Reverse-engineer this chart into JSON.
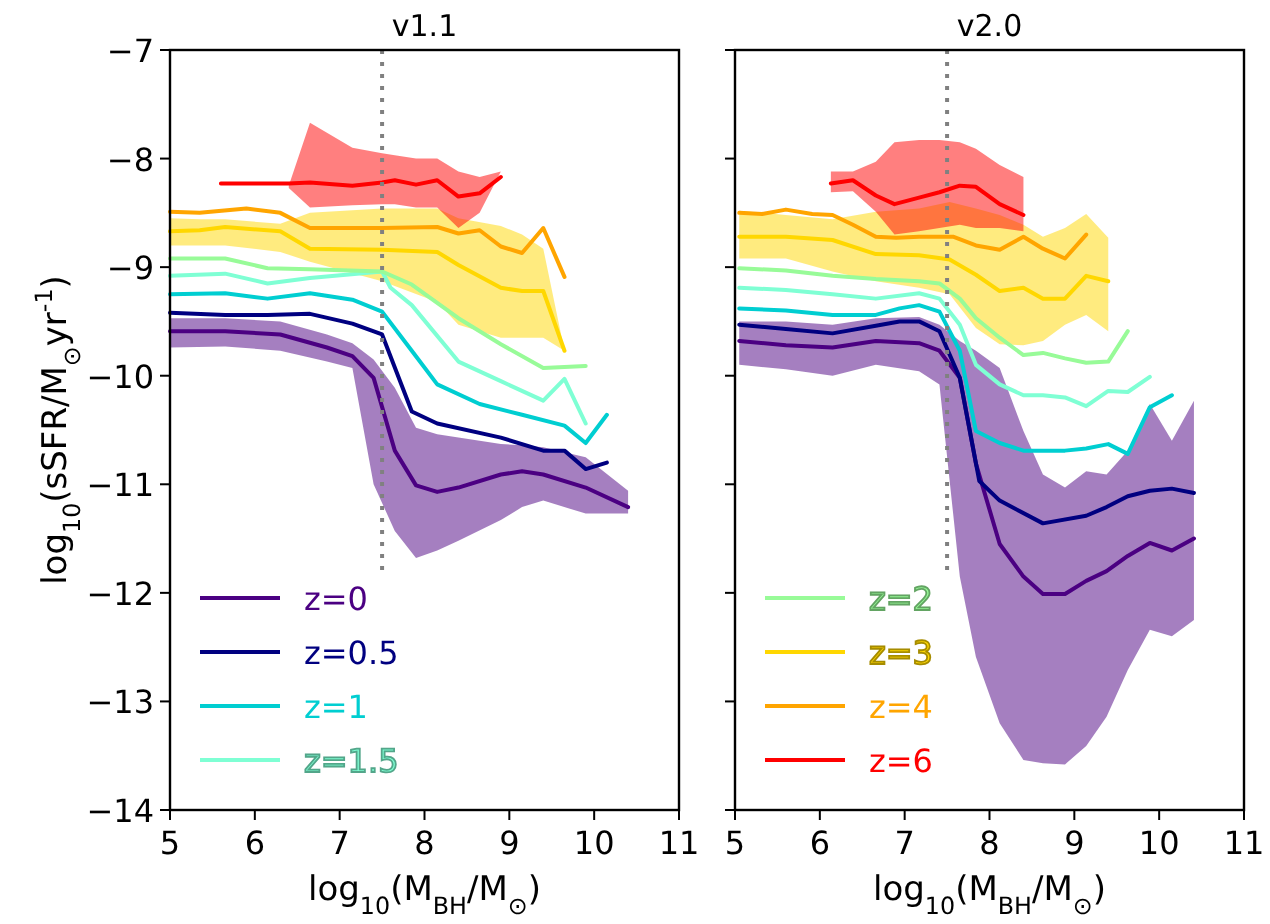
{
  "chart_data": [
    {
      "type": "line",
      "title": "v1.1",
      "xlabel": "log$_{10}$(M$_{BH}$/M$_{⊙}$)",
      "ylabel": "log$_{10}$(sSFR/M$_{⊙}$yr$^{-1}$)",
      "xlim": [
        5,
        11
      ],
      "xticks": [
        5,
        6,
        7,
        8,
        9,
        10,
        11
      ],
      "ylim": [
        -14,
        -7
      ],
      "yticks": [
        -14,
        -13,
        -12,
        -11,
        -10,
        -9,
        -8,
        -7
      ],
      "legend": "lower left",
      "ref_lines": [
        {
          "axis": "x",
          "value": 7.5,
          "color": "#808080",
          "line_style": "dotted"
        }
      ],
      "series": [
        {
          "name": "z=0",
          "color": "#4b0082",
          "x": [
            5.0,
            5.65,
            6.3,
            6.85,
            7.15,
            7.4,
            7.65,
            7.9,
            8.15,
            8.4,
            8.9,
            9.15,
            9.4,
            9.9,
            10.4
          ],
          "values": [
            -9.59,
            -9.59,
            -9.62,
            -9.74,
            -9.82,
            -10.02,
            -10.69,
            -11.01,
            -11.07,
            -11.03,
            -10.91,
            -10.88,
            -10.91,
            -11.03,
            -11.21
          ],
          "upper": [
            -9.47,
            -9.47,
            -9.5,
            -9.62,
            -9.7,
            -9.85,
            -10.11,
            -10.48,
            -10.54,
            -10.57,
            -10.63,
            -10.64,
            -10.66,
            -10.75,
            -11.06
          ],
          "lower": [
            -9.74,
            -9.73,
            -9.77,
            -9.87,
            -9.93,
            -11.0,
            -11.43,
            -11.68,
            -11.61,
            -11.52,
            -11.33,
            -11.21,
            -11.15,
            -11.27,
            -11.27
          ]
        },
        {
          "name": "z=0.5",
          "color": "#000080",
          "x": [
            5.0,
            5.65,
            6.15,
            6.65,
            7.15,
            7.5,
            7.85,
            8.15,
            8.9,
            9.4,
            9.65,
            9.9,
            10.15
          ],
          "values": [
            -9.42,
            -9.44,
            -9.44,
            -9.43,
            -9.52,
            -9.62,
            -10.33,
            -10.44,
            -10.57,
            -10.69,
            -10.69,
            -10.86,
            -10.8
          ]
        },
        {
          "name": "z=1",
          "color": "#00ced1",
          "x": [
            5.0,
            5.65,
            6.15,
            6.65,
            7.15,
            7.5,
            7.85,
            8.15,
            8.65,
            9.15,
            9.65,
            9.9,
            10.15
          ],
          "values": [
            -9.25,
            -9.24,
            -9.29,
            -9.24,
            -9.3,
            -9.41,
            -9.77,
            -10.08,
            -10.26,
            -10.36,
            -10.46,
            -10.62,
            -10.36
          ]
        },
        {
          "name": "z=1.5",
          "color": "#7fffd4",
          "x": [
            5.0,
            5.65,
            6.15,
            6.65,
            7.5,
            7.6,
            7.85,
            8.4,
            8.9,
            9.4,
            9.65,
            9.9
          ],
          "values": [
            -9.08,
            -9.06,
            -9.15,
            -9.1,
            -9.04,
            -9.19,
            -9.35,
            -9.87,
            -10.05,
            -10.23,
            -10.03,
            -10.44
          ]
        },
        {
          "color": "#98fb98",
          "x": [
            5.0,
            5.65,
            6.15,
            6.65,
            7.5,
            7.85,
            8.4,
            8.9,
            9.4,
            9.9
          ],
          "values": [
            -8.92,
            -8.92,
            -9.01,
            -9.02,
            -9.04,
            -9.16,
            -9.47,
            -9.71,
            -9.93,
            -9.91
          ]
        },
        {
          "color": "#ffd700",
          "x": [
            5.0,
            5.35,
            5.65,
            6.3,
            6.65,
            7.5,
            8.15,
            8.4,
            8.9,
            9.15,
            9.4,
            9.65
          ],
          "values": [
            -8.67,
            -8.66,
            -8.63,
            -8.67,
            -8.83,
            -8.84,
            -8.86,
            -8.98,
            -9.19,
            -9.22,
            -9.22,
            -9.77
          ],
          "upper": [
            -8.55,
            -8.56,
            -8.56,
            -8.6,
            -8.5,
            -8.46,
            -8.46,
            -8.55,
            -8.62,
            -8.7,
            -8.83,
            -9.77
          ],
          "lower": [
            -8.8,
            -8.8,
            -8.8,
            -8.86,
            -8.95,
            -9.13,
            -9.32,
            -9.53,
            -9.65,
            -9.65,
            -9.65,
            -9.77
          ]
        },
        {
          "color": "#ffa500",
          "x": [
            5.0,
            5.35,
            5.9,
            6.3,
            6.65,
            7.5,
            8.15,
            8.4,
            8.65,
            8.9,
            9.15,
            9.4,
            9.65
          ],
          "values": [
            -8.49,
            -8.5,
            -8.46,
            -8.5,
            -8.64,
            -8.64,
            -8.63,
            -8.69,
            -8.66,
            -8.81,
            -8.87,
            -8.64,
            -9.09
          ]
        },
        {
          "color": "#ff0000",
          "x": [
            5.6,
            6.4,
            6.65,
            7.15,
            7.5,
            7.65,
            7.9,
            8.15,
            8.4,
            8.65,
            8.9
          ],
          "values": [
            -8.23,
            -8.23,
            -8.22,
            -8.25,
            -8.22,
            -8.2,
            -8.24,
            -8.2,
            -8.35,
            -8.32,
            -8.17
          ],
          "upper": [
            null,
            -8.25,
            -7.67,
            -7.9,
            -7.95,
            -7.97,
            -8.0,
            -8.0,
            -8.12,
            -8.17,
            -8.12
          ],
          "lower": [
            null,
            -8.27,
            -8.45,
            -8.43,
            -8.42,
            -8.42,
            -8.45,
            -8.45,
            -8.64,
            -8.5,
            -8.12
          ]
        }
      ]
    },
    {
      "type": "line",
      "title": "v2.0",
      "xlabel": "log$_{10}$(M$_{BH}$/M$_{⊙}$)",
      "xlim": [
        5,
        11
      ],
      "xticks": [
        5,
        6,
        7,
        8,
        9,
        10,
        11
      ],
      "ylim": [
        -14,
        -7
      ],
      "yticks": [
        -14,
        -13,
        -12,
        -11,
        -10,
        -9,
        -8,
        -7
      ],
      "tick_labels": "x",
      "legend": "lower left",
      "ref_lines": [
        {
          "axis": "x",
          "value": 7.5,
          "color": "#808080",
          "line_style": "dotted"
        }
      ],
      "series": [
        {
          "color": "#4b0082",
          "x": [
            5.05,
            5.6,
            6.15,
            6.66,
            7.17,
            7.41,
            7.65,
            7.84,
            8.12,
            8.4,
            8.63,
            8.89,
            9.14,
            9.38,
            9.63,
            9.89,
            10.15,
            10.41
          ],
          "values": [
            -9.68,
            -9.72,
            -9.74,
            -9.68,
            -9.7,
            -9.77,
            -10.02,
            -10.81,
            -11.55,
            -11.85,
            -12.01,
            -12.01,
            -11.89,
            -11.8,
            -11.66,
            -11.54,
            -11.61,
            -11.5
          ],
          "upper": [
            -9.5,
            -9.5,
            -9.53,
            -9.47,
            -9.46,
            -9.53,
            -9.68,
            -9.77,
            -9.93,
            -10.51,
            -10.91,
            -11.03,
            -10.88,
            -10.91,
            -10.69,
            -10.26,
            -10.6,
            -10.23
          ],
          "lower": [
            -9.9,
            -9.94,
            -10.0,
            -9.9,
            -9.96,
            -10.08,
            -11.85,
            -12.59,
            -13.2,
            -13.54,
            -13.57,
            -13.58,
            -13.41,
            -13.14,
            -12.71,
            -12.34,
            -12.4,
            -12.25
          ]
        },
        {
          "color": "#000080",
          "x": [
            5.05,
            5.6,
            6.15,
            6.66,
            6.94,
            7.17,
            7.41,
            7.65,
            7.88,
            8.12,
            8.63,
            9.14,
            9.38,
            9.63,
            9.89,
            10.15,
            10.41
          ],
          "values": [
            -9.53,
            -9.57,
            -9.61,
            -9.54,
            -9.5,
            -9.5,
            -9.59,
            -10.02,
            -10.97,
            -11.15,
            -11.36,
            -11.29,
            -11.21,
            -11.11,
            -11.06,
            -11.04,
            -11.08
          ]
        },
        {
          "color": "#00ced1",
          "x": [
            5.05,
            5.6,
            6.15,
            6.66,
            6.94,
            7.17,
            7.41,
            7.65,
            7.84,
            8.12,
            8.4,
            8.89,
            9.14,
            9.4,
            9.63,
            9.89,
            10.15
          ],
          "values": [
            -9.38,
            -9.4,
            -9.44,
            -9.44,
            -9.38,
            -9.35,
            -9.41,
            -9.77,
            -10.51,
            -10.62,
            -10.69,
            -10.69,
            -10.67,
            -10.63,
            -10.72,
            -10.29,
            -10.18
          ]
        },
        {
          "color": "#7fffd4",
          "x": [
            5.05,
            5.6,
            6.15,
            6.66,
            7.17,
            7.41,
            7.65,
            7.84,
            8.12,
            8.4,
            8.63,
            8.89,
            9.14,
            9.4,
            9.63,
            9.89
          ],
          "values": [
            -9.19,
            -9.21,
            -9.25,
            -9.29,
            -9.24,
            -9.29,
            -9.53,
            -9.9,
            -10.08,
            -10.18,
            -10.18,
            -10.2,
            -10.28,
            -10.14,
            -10.15,
            -10.01
          ]
        },
        {
          "name": "z=2",
          "color": "#98fb98",
          "x": [
            5.05,
            5.6,
            6.15,
            6.66,
            7.17,
            7.41,
            7.65,
            7.84,
            8.12,
            8.4,
            8.63,
            8.89,
            9.14,
            9.4,
            9.63
          ],
          "values": [
            -9.01,
            -9.03,
            -9.08,
            -9.11,
            -9.13,
            -9.15,
            -9.29,
            -9.47,
            -9.65,
            -9.81,
            -9.79,
            -9.84,
            -9.88,
            -9.87,
            -9.59
          ]
        },
        {
          "name": "z=3",
          "color": "#ffd700",
          "x": [
            5.05,
            5.6,
            6.15,
            6.66,
            7.17,
            7.53,
            7.84,
            8.12,
            8.4,
            8.63,
            8.89,
            9.14,
            9.4
          ],
          "values": [
            -8.72,
            -8.72,
            -8.75,
            -8.88,
            -8.89,
            -8.93,
            -9.07,
            -9.22,
            -9.19,
            -9.29,
            -9.29,
            -9.08,
            -9.13
          ],
          "upper": [
            -8.48,
            -8.52,
            -8.56,
            -8.49,
            -8.46,
            -8.4,
            -8.46,
            -8.52,
            -8.61,
            -8.72,
            -8.64,
            -8.51,
            -8.73
          ],
          "lower": [
            -8.92,
            -8.92,
            -9.04,
            -9.13,
            -9.19,
            -9.25,
            -9.56,
            -9.71,
            -9.72,
            -9.68,
            -9.53,
            -9.44,
            -9.59
          ]
        },
        {
          "name": "z=4",
          "color": "#ffa500",
          "x": [
            5.05,
            5.32,
            5.6,
            5.91,
            6.15,
            6.39,
            6.66,
            6.9,
            7.17,
            7.57,
            7.84,
            8.12,
            8.4,
            8.63,
            8.89,
            9.14
          ],
          "values": [
            -8.5,
            -8.51,
            -8.47,
            -8.51,
            -8.52,
            -8.61,
            -8.72,
            -8.73,
            -8.72,
            -8.72,
            -8.8,
            -8.84,
            -8.72,
            -8.83,
            -8.92,
            -8.7
          ]
        },
        {
          "name": "z=6",
          "color": "#ff0000",
          "x": [
            6.13,
            6.39,
            6.66,
            6.88,
            7.17,
            7.41,
            7.65,
            7.84,
            8.12,
            8.4
          ],
          "values": [
            -8.23,
            -8.2,
            -8.34,
            -8.42,
            -8.36,
            -8.31,
            -8.25,
            -8.26,
            -8.42,
            -8.52
          ],
          "upper": [
            -8.12,
            -8.12,
            -8.03,
            -7.85,
            -7.83,
            -7.83,
            -7.85,
            -7.91,
            -8.06,
            -8.17
          ],
          "lower": [
            -8.31,
            -8.3,
            -8.49,
            -8.7,
            -8.67,
            -8.64,
            -8.61,
            -8.64,
            -8.64,
            -8.67
          ]
        }
      ]
    }
  ]
}
